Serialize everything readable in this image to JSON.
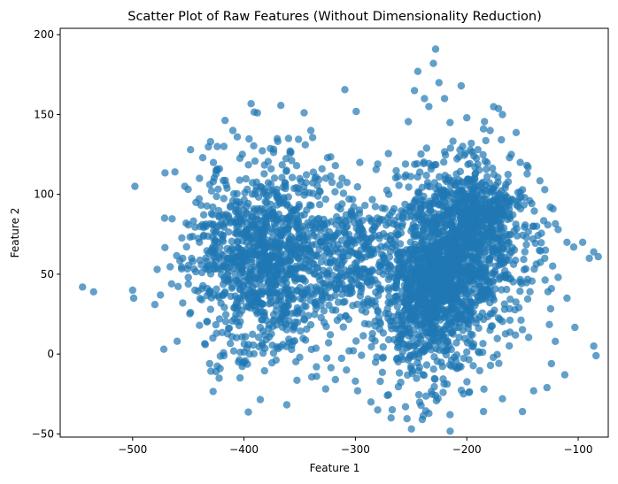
{
  "chart_data": {
    "type": "scatter",
    "title": "Scatter Plot of Raw Features (Without Dimensionality Reduction)",
    "xlabel": "Feature 1",
    "ylabel": "Feature 2",
    "xlim": [
      -565,
      -73
    ],
    "ylim": [
      -52,
      204
    ],
    "xticks": [
      -500,
      -400,
      -300,
      -200,
      -100
    ],
    "yticks": [
      -50,
      0,
      50,
      100,
      150,
      200
    ],
    "xtick_labels": [
      "−500",
      "−400",
      "−300",
      "−200",
      "−100"
    ],
    "ytick_labels": [
      "−50",
      "0",
      "50",
      "100",
      "150",
      "200"
    ],
    "grid": false,
    "legend": "none",
    "marker_color": "#1f77b4",
    "marker_alpha": 0.7,
    "clusters_note_free": true,
    "points": [
      [
        -545,
        42
      ],
      [
        -535,
        39
      ],
      [
        -500,
        40
      ],
      [
        -499,
        35
      ],
      [
        -480,
        31
      ],
      [
        -478,
        53
      ],
      [
        -475,
        37
      ],
      [
        -472,
        3
      ],
      [
        -465,
        44
      ],
      [
        -460,
        8
      ],
      [
        -455,
        60
      ],
      [
        -452,
        82
      ],
      [
        -448,
        128
      ],
      [
        -440,
        110
      ],
      [
        -437,
        123
      ],
      [
        -430,
        133
      ],
      [
        -418,
        130
      ],
      [
        -410,
        140
      ],
      [
        -406,
        136
      ],
      [
        -388,
        151
      ],
      [
        -360,
        135
      ],
      [
        -345,
        131
      ],
      [
        -340,
        140
      ],
      [
        -330,
        116
      ],
      [
        -325,
        123
      ],
      [
        -318,
        118
      ],
      [
        -312,
        110
      ],
      [
        -296,
        120
      ],
      [
        -280,
        119
      ],
      [
        -270,
        100
      ],
      [
        -262,
        111
      ],
      [
        -255,
        119
      ],
      [
        -247,
        165
      ],
      [
        -244,
        177
      ],
      [
        -238,
        160
      ],
      [
        -234,
        155
      ],
      [
        -230,
        182
      ],
      [
        -228,
        191
      ],
      [
        -225,
        170
      ],
      [
        -220,
        160
      ],
      [
        -215,
        145
      ],
      [
        -205,
        168
      ],
      [
        -200,
        148
      ],
      [
        -196,
        132
      ],
      [
        -190,
        128
      ],
      [
        -185,
        141
      ],
      [
        -179,
        140
      ],
      [
        -168,
        150
      ],
      [
        -160,
        125
      ],
      [
        -152,
        120
      ],
      [
        -145,
        117
      ],
      [
        -130,
        103
      ],
      [
        -125,
        92
      ],
      [
        -118,
        78
      ],
      [
        -110,
        70
      ],
      [
        -104,
        67
      ],
      [
        -96,
        70
      ],
      [
        -90,
        60
      ],
      [
        -86,
        64
      ],
      [
        -82,
        61
      ],
      [
        -86,
        5
      ],
      [
        -84,
        -1
      ],
      [
        -112,
        -13
      ],
      [
        -124,
        -6
      ],
      [
        -128,
        -21
      ],
      [
        -140,
        -23
      ],
      [
        -150,
        -36
      ],
      [
        -168,
        -28
      ],
      [
        -185,
        -36
      ],
      [
        -198,
        -24
      ],
      [
        -215,
        -38
      ],
      [
        -228,
        -26
      ],
      [
        -240,
        -41
      ],
      [
        -255,
        -33
      ],
      [
        -268,
        -40
      ],
      [
        -280,
        -35
      ],
      [
        -286,
        -30
      ],
      [
        -298,
        -23
      ],
      [
        -300,
        -17
      ],
      [
        -308,
        -10
      ],
      [
        -318,
        -16
      ],
      [
        -335,
        -8
      ],
      [
        -350,
        -2
      ],
      [
        -365,
        6
      ],
      [
        -380,
        9
      ],
      [
        -395,
        0
      ],
      [
        -405,
        -5
      ],
      [
        -418,
        -1
      ],
      [
        -428,
        10
      ],
      [
        -440,
        18
      ],
      [
        -448,
        26
      ],
      [
        -455,
        32
      ],
      [
        -110,
        35
      ],
      [
        -118,
        48
      ],
      [
        -124,
        41
      ],
      [
        -130,
        60
      ],
      [
        -140,
        80
      ],
      [
        -148,
        98
      ],
      [
        -300,
        47
      ],
      [
        -292,
        53
      ],
      [
        -286,
        62
      ],
      [
        -280,
        44
      ],
      [
        -276,
        56
      ],
      [
        -270,
        40
      ],
      [
        -264,
        68
      ],
      [
        -258,
        35
      ],
      [
        -250,
        77
      ],
      [
        -244,
        88
      ],
      [
        -250,
        22
      ],
      [
        -255,
        14
      ],
      [
        -262,
        4
      ],
      [
        -270,
        9
      ],
      [
        -278,
        20
      ],
      [
        -282,
        30
      ],
      [
        -290,
        72
      ],
      [
        -296,
        80
      ],
      [
        -304,
        88
      ],
      [
        -312,
        94
      ],
      [
        -318,
        74
      ],
      [
        -326,
        66
      ],
      [
        -334,
        54
      ],
      [
        -340,
        42
      ],
      [
        -346,
        30
      ],
      [
        -354,
        20
      ],
      [
        -362,
        26
      ],
      [
        -370,
        38
      ],
      [
        -378,
        46
      ],
      [
        -386,
        56
      ],
      [
        -392,
        66
      ],
      [
        -398,
        76
      ],
      [
        -404,
        86
      ],
      [
        -410,
        96
      ],
      [
        -416,
        106
      ],
      [
        -422,
        116
      ],
      [
        -428,
        92
      ],
      [
        -434,
        80
      ],
      [
        -440,
        70
      ],
      [
        -446,
        58
      ],
      [
        -450,
        48
      ],
      [
        -444,
        40
      ],
      [
        -438,
        34
      ],
      [
        -430,
        28
      ],
      [
        -422,
        22
      ],
      [
        -414,
        16
      ]
    ],
    "clusters": [
      {
        "cx": -380,
        "cy": 62,
        "sx": 34,
        "sy": 30,
        "n": 1150,
        "seed": 11
      },
      {
        "cx": -212,
        "cy": 62,
        "sx": 32,
        "sy": 28,
        "n": 1150,
        "seed": 23
      },
      {
        "cx": -235,
        "cy": 25,
        "sx": 22,
        "sy": 26,
        "n": 420,
        "seed": 37
      },
      {
        "cx": -190,
        "cy": 90,
        "sx": 18,
        "sy": 14,
        "n": 260,
        "seed": 41
      },
      {
        "cx": -230,
        "cy": 45,
        "sx": 14,
        "sy": 12,
        "n": 260,
        "seed": 53
      },
      {
        "cx": -300,
        "cy": 60,
        "sx": 22,
        "sy": 18,
        "n": 220,
        "seed": 67
      }
    ]
  }
}
